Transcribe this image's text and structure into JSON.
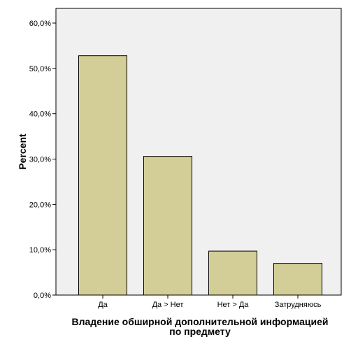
{
  "chart_data": {
    "type": "bar",
    "categories": [
      "Да",
      "Да > Нет",
      "Нет > Да",
      "Затрудняюсь"
    ],
    "values": [
      52.8,
      30.6,
      9.7,
      7.0
    ],
    "ylabel": "Percent",
    "xlabel_lines": [
      "Владение обширной дополнительной информацией",
      "по предмету"
    ],
    "ylim": [
      0,
      60
    ],
    "yticks": [
      0,
      10,
      20,
      30,
      40,
      50,
      60
    ],
    "ytick_labels": [
      "0,0%",
      "10,0%",
      "20,0%",
      "30,0%",
      "40,0%",
      "50,0%",
      "60,0%"
    ],
    "grid": false,
    "bar_color": "#d3ce98",
    "bar_edge_color": "#000000",
    "plot_background": "#f0f0f0"
  }
}
